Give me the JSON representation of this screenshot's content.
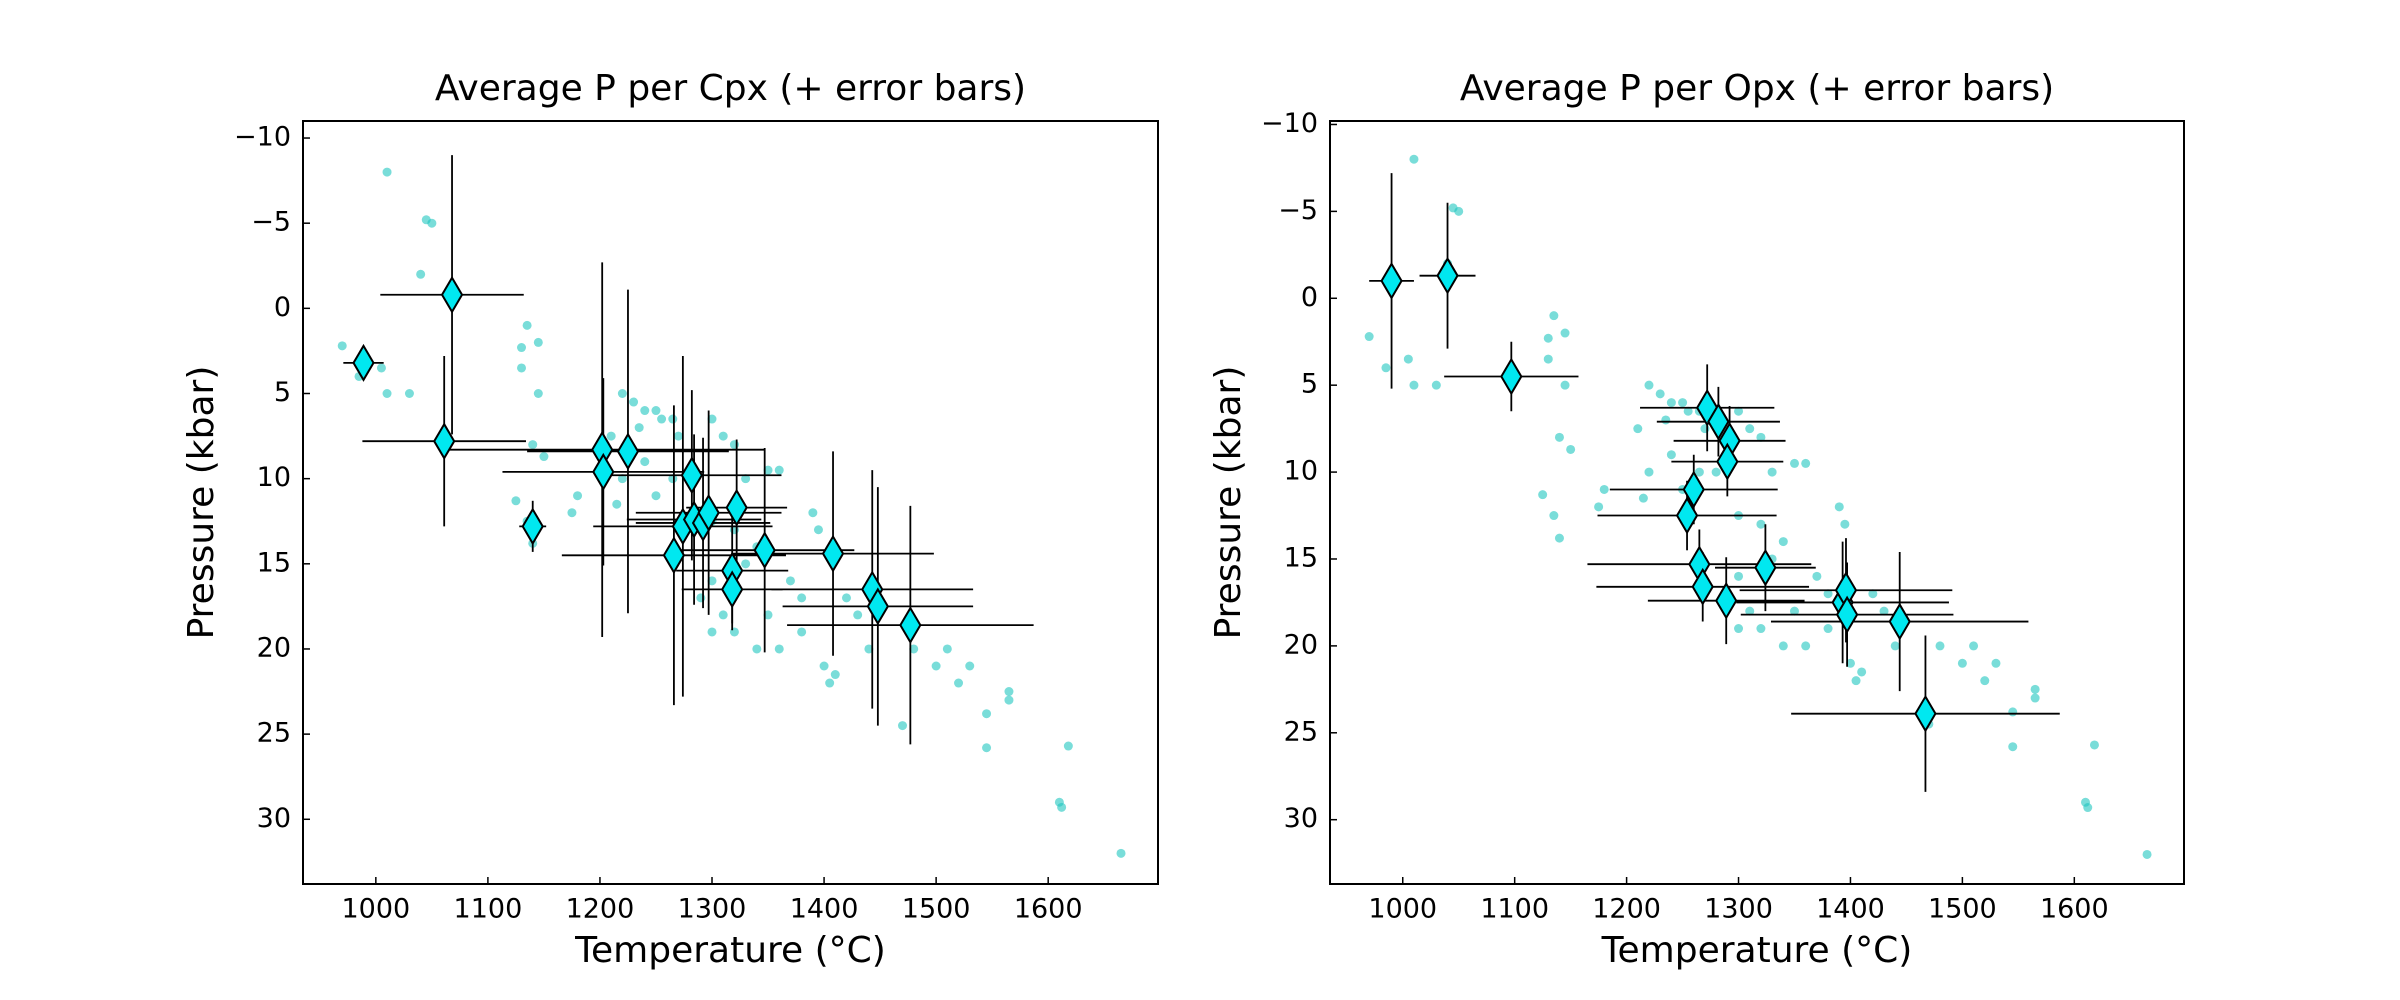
{
  "chart_data": [
    {
      "type": "scatter",
      "title": "Average P per Cpx (+ error bars)",
      "x_label": "Temperature (°C)",
      "y_label": "Pressure (kbar)",
      "xlim": [
        935,
        1698
      ],
      "ylim": [
        33.8,
        -11
      ],
      "xticks": [
        1000,
        1100,
        1200,
        1300,
        1400,
        1500,
        1600
      ],
      "yticks": [
        {
          "value": -10,
          "label": "−10"
        },
        {
          "value": -5,
          "label": "−5"
        },
        0,
        5,
        10,
        15,
        20,
        25,
        30
      ],
      "series": [
        {
          "color": "#20c6c0",
          "x": [
            1010,
            1045,
            1050,
            1040,
            970,
            1005,
            1010,
            1030,
            985,
            1135,
            1130,
            1145,
            1130,
            1145,
            1140,
            1150,
            1125,
            1135,
            1140,
            1175,
            1180,
            1220,
            1230,
            1240,
            1250,
            1235,
            1210,
            1255,
            1265,
            1270,
            1240,
            1220,
            1215,
            1250,
            1265,
            1280,
            1300,
            1310,
            1320,
            1330,
            1360,
            1350,
            1300,
            1320,
            1340,
            1330,
            1300,
            1290,
            1310,
            1320,
            1300,
            1350,
            1340,
            1370,
            1380,
            1360,
            1380,
            1390,
            1395,
            1400,
            1405,
            1410,
            1420,
            1430,
            1440,
            1470,
            1480,
            1500,
            1510,
            1520,
            1530,
            1545,
            1545,
            1565,
            1565,
            1610,
            1612,
            1618,
            1665
          ],
          "values": [
            -8,
            -5.2,
            -5,
            -2,
            2.2,
            3.5,
            5,
            5,
            4,
            1,
            2.3,
            2,
            3.5,
            5,
            8,
            8.7,
            11.3,
            12.5,
            13.8,
            12,
            11,
            5,
            5.5,
            6,
            6,
            7,
            7.5,
            6.5,
            6.5,
            7.5,
            9,
            10,
            11.5,
            11,
            10,
            10,
            6.5,
            7.5,
            8,
            10,
            9.5,
            9.5,
            12.5,
            13,
            14,
            15,
            16,
            17,
            18,
            19,
            19,
            18,
            20,
            16,
            17,
            20,
            19,
            12,
            13,
            21,
            22,
            21.5,
            17,
            18,
            20,
            24.5,
            20,
            21,
            20,
            22,
            21,
            23.8,
            25.8,
            22.5,
            23,
            29,
            29.3,
            25.7,
            32
          ]
        },
        {
          "color": "#00e8f0",
          "marker": "diamond",
          "x": [
            989,
            1068,
            1061,
            1140,
            1202,
            1203,
            1225,
            1282,
            1266,
            1274,
            1284,
            1292,
            1297,
            1322,
            1318,
            1318,
            1347,
            1408,
            1443,
            1448,
            1477
          ],
          "values": [
            3.2,
            -0.8,
            7.8,
            12.8,
            8.3,
            9.6,
            8.4,
            9.8,
            14.5,
            12.8,
            12.4,
            12.6,
            12,
            11.7,
            15.4,
            16.5,
            14.2,
            14.4,
            16.5,
            17.5,
            18.6
          ],
          "xerr": [
            18,
            64,
            73,
            12,
            145,
            90,
            90,
            80,
            100,
            80,
            60,
            60,
            65,
            45,
            50,
            45,
            80,
            90,
            90,
            85,
            110
          ],
          "yerr": [
            1,
            8.2,
            5,
            1.5,
            11,
            5.5,
            9.5,
            5,
            8.8,
            10,
            5,
            5,
            6,
            4,
            3.5,
            2,
            6,
            6,
            7,
            7,
            7
          ]
        }
      ]
    },
    {
      "type": "scatter",
      "title": "Average P per Opx (+ error bars)",
      "x_label": "Temperature (°C)",
      "y_label": "Pressure (kbar)",
      "xlim": [
        935,
        1698
      ],
      "ylim": [
        33.7,
        -10.2
      ],
      "xticks": [
        1000,
        1100,
        1200,
        1300,
        1400,
        1500,
        1600
      ],
      "yticks": [
        {
          "value": -10,
          "label": "−10"
        },
        {
          "value": -5,
          "label": "−5"
        },
        0,
        5,
        10,
        15,
        20,
        25,
        30
      ],
      "series": [
        {
          "color": "#20c6c0",
          "x": [
            1010,
            1045,
            1050,
            1040,
            970,
            1005,
            1010,
            1030,
            985,
            1135,
            1130,
            1145,
            1130,
            1145,
            1140,
            1150,
            1125,
            1135,
            1140,
            1175,
            1180,
            1220,
            1230,
            1240,
            1250,
            1235,
            1210,
            1255,
            1265,
            1270,
            1240,
            1220,
            1215,
            1250,
            1265,
            1280,
            1300,
            1310,
            1320,
            1330,
            1360,
            1350,
            1300,
            1320,
            1340,
            1330,
            1300,
            1290,
            1310,
            1320,
            1300,
            1350,
            1340,
            1370,
            1380,
            1360,
            1380,
            1390,
            1395,
            1400,
            1405,
            1410,
            1420,
            1430,
            1440,
            1470,
            1480,
            1500,
            1510,
            1520,
            1530,
            1545,
            1545,
            1565,
            1565,
            1610,
            1612,
            1618,
            1665
          ],
          "values": [
            -8,
            -5.2,
            -5,
            -2,
            2.2,
            3.5,
            5,
            5,
            4,
            1,
            2.3,
            2,
            3.5,
            5,
            8,
            8.7,
            11.3,
            12.5,
            13.8,
            12,
            11,
            5,
            5.5,
            6,
            6,
            7,
            7.5,
            6.5,
            6.5,
            7.5,
            9,
            10,
            11.5,
            11,
            10,
            10,
            6.5,
            7.5,
            8,
            10,
            9.5,
            9.5,
            12.5,
            13,
            14,
            15,
            16,
            17,
            18,
            19,
            19,
            18,
            20,
            16,
            17,
            20,
            19,
            12,
            13,
            21,
            22,
            21.5,
            17,
            18,
            20,
            24.5,
            20,
            21,
            20,
            22,
            21,
            23.8,
            25.8,
            22.5,
            23,
            29,
            29.3,
            25.7,
            32
          ]
        },
        {
          "color": "#00e8f0",
          "marker": "diamond",
          "x": [
            990,
            1040,
            1097,
            1272,
            1282,
            1292,
            1290,
            1260,
            1254,
            1265,
            1268,
            1289,
            1324,
            1393,
            1396,
            1397,
            1444,
            1467
          ],
          "values": [
            -1,
            -1.3,
            4.5,
            6.3,
            7.1,
            8.2,
            9.4,
            11,
            12.5,
            15.3,
            16.6,
            17.4,
            15.5,
            17.5,
            16.8,
            18.2,
            18.6,
            23.9
          ],
          "xerr": [
            20,
            25,
            60,
            60,
            55,
            50,
            50,
            75,
            80,
            100,
            95,
            70,
            45,
            95,
            95,
            95,
            115,
            120
          ],
          "yerr": [
            6.2,
            4.2,
            2,
            2.5,
            2,
            2,
            2,
            2,
            2,
            2,
            2,
            2.5,
            2.5,
            3.5,
            3,
            3,
            4,
            4.5
          ]
        }
      ]
    }
  ]
}
